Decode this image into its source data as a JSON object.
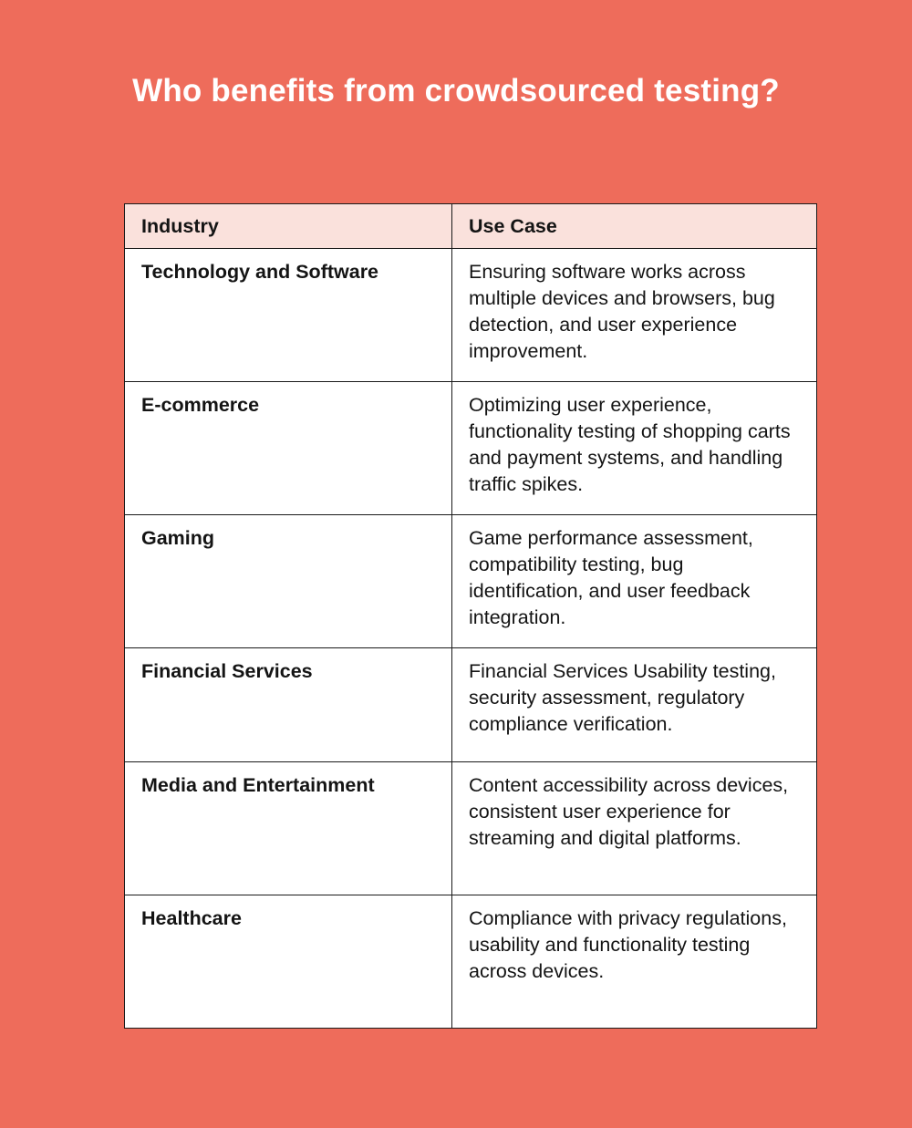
{
  "title": "Who benefits from crowdsourced testing?",
  "table": {
    "headers": [
      "Industry",
      "Use Case"
    ],
    "rows": [
      {
        "industry": "Technology and Software",
        "use_case": "Ensuring software works across multiple devices and browsers, bug detection, and user experience improvement."
      },
      {
        "industry": "E-commerce",
        "use_case": "Optimizing user experience, functionality testing of shopping carts and payment systems, and handling traffic spikes."
      },
      {
        "industry": "Gaming",
        "use_case": "Game performance assessment, compatibility testing, bug identification, and user feedback integration."
      },
      {
        "industry": "Financial Services",
        "use_case": "Financial Services Usability testing, security assessment, regulatory compliance verification."
      },
      {
        "industry": "Media and Entertainment",
        "use_case": "Content accessibility across devices, consistent user experience for streaming and digital platforms."
      },
      {
        "industry": "Healthcare",
        "use_case": "Compliance with privacy regulations, usability and functionality testing across devices."
      }
    ]
  },
  "colors": {
    "background": "#EE6C5B",
    "header_fill": "#FAE1DC",
    "title": "#FFFFFF"
  }
}
